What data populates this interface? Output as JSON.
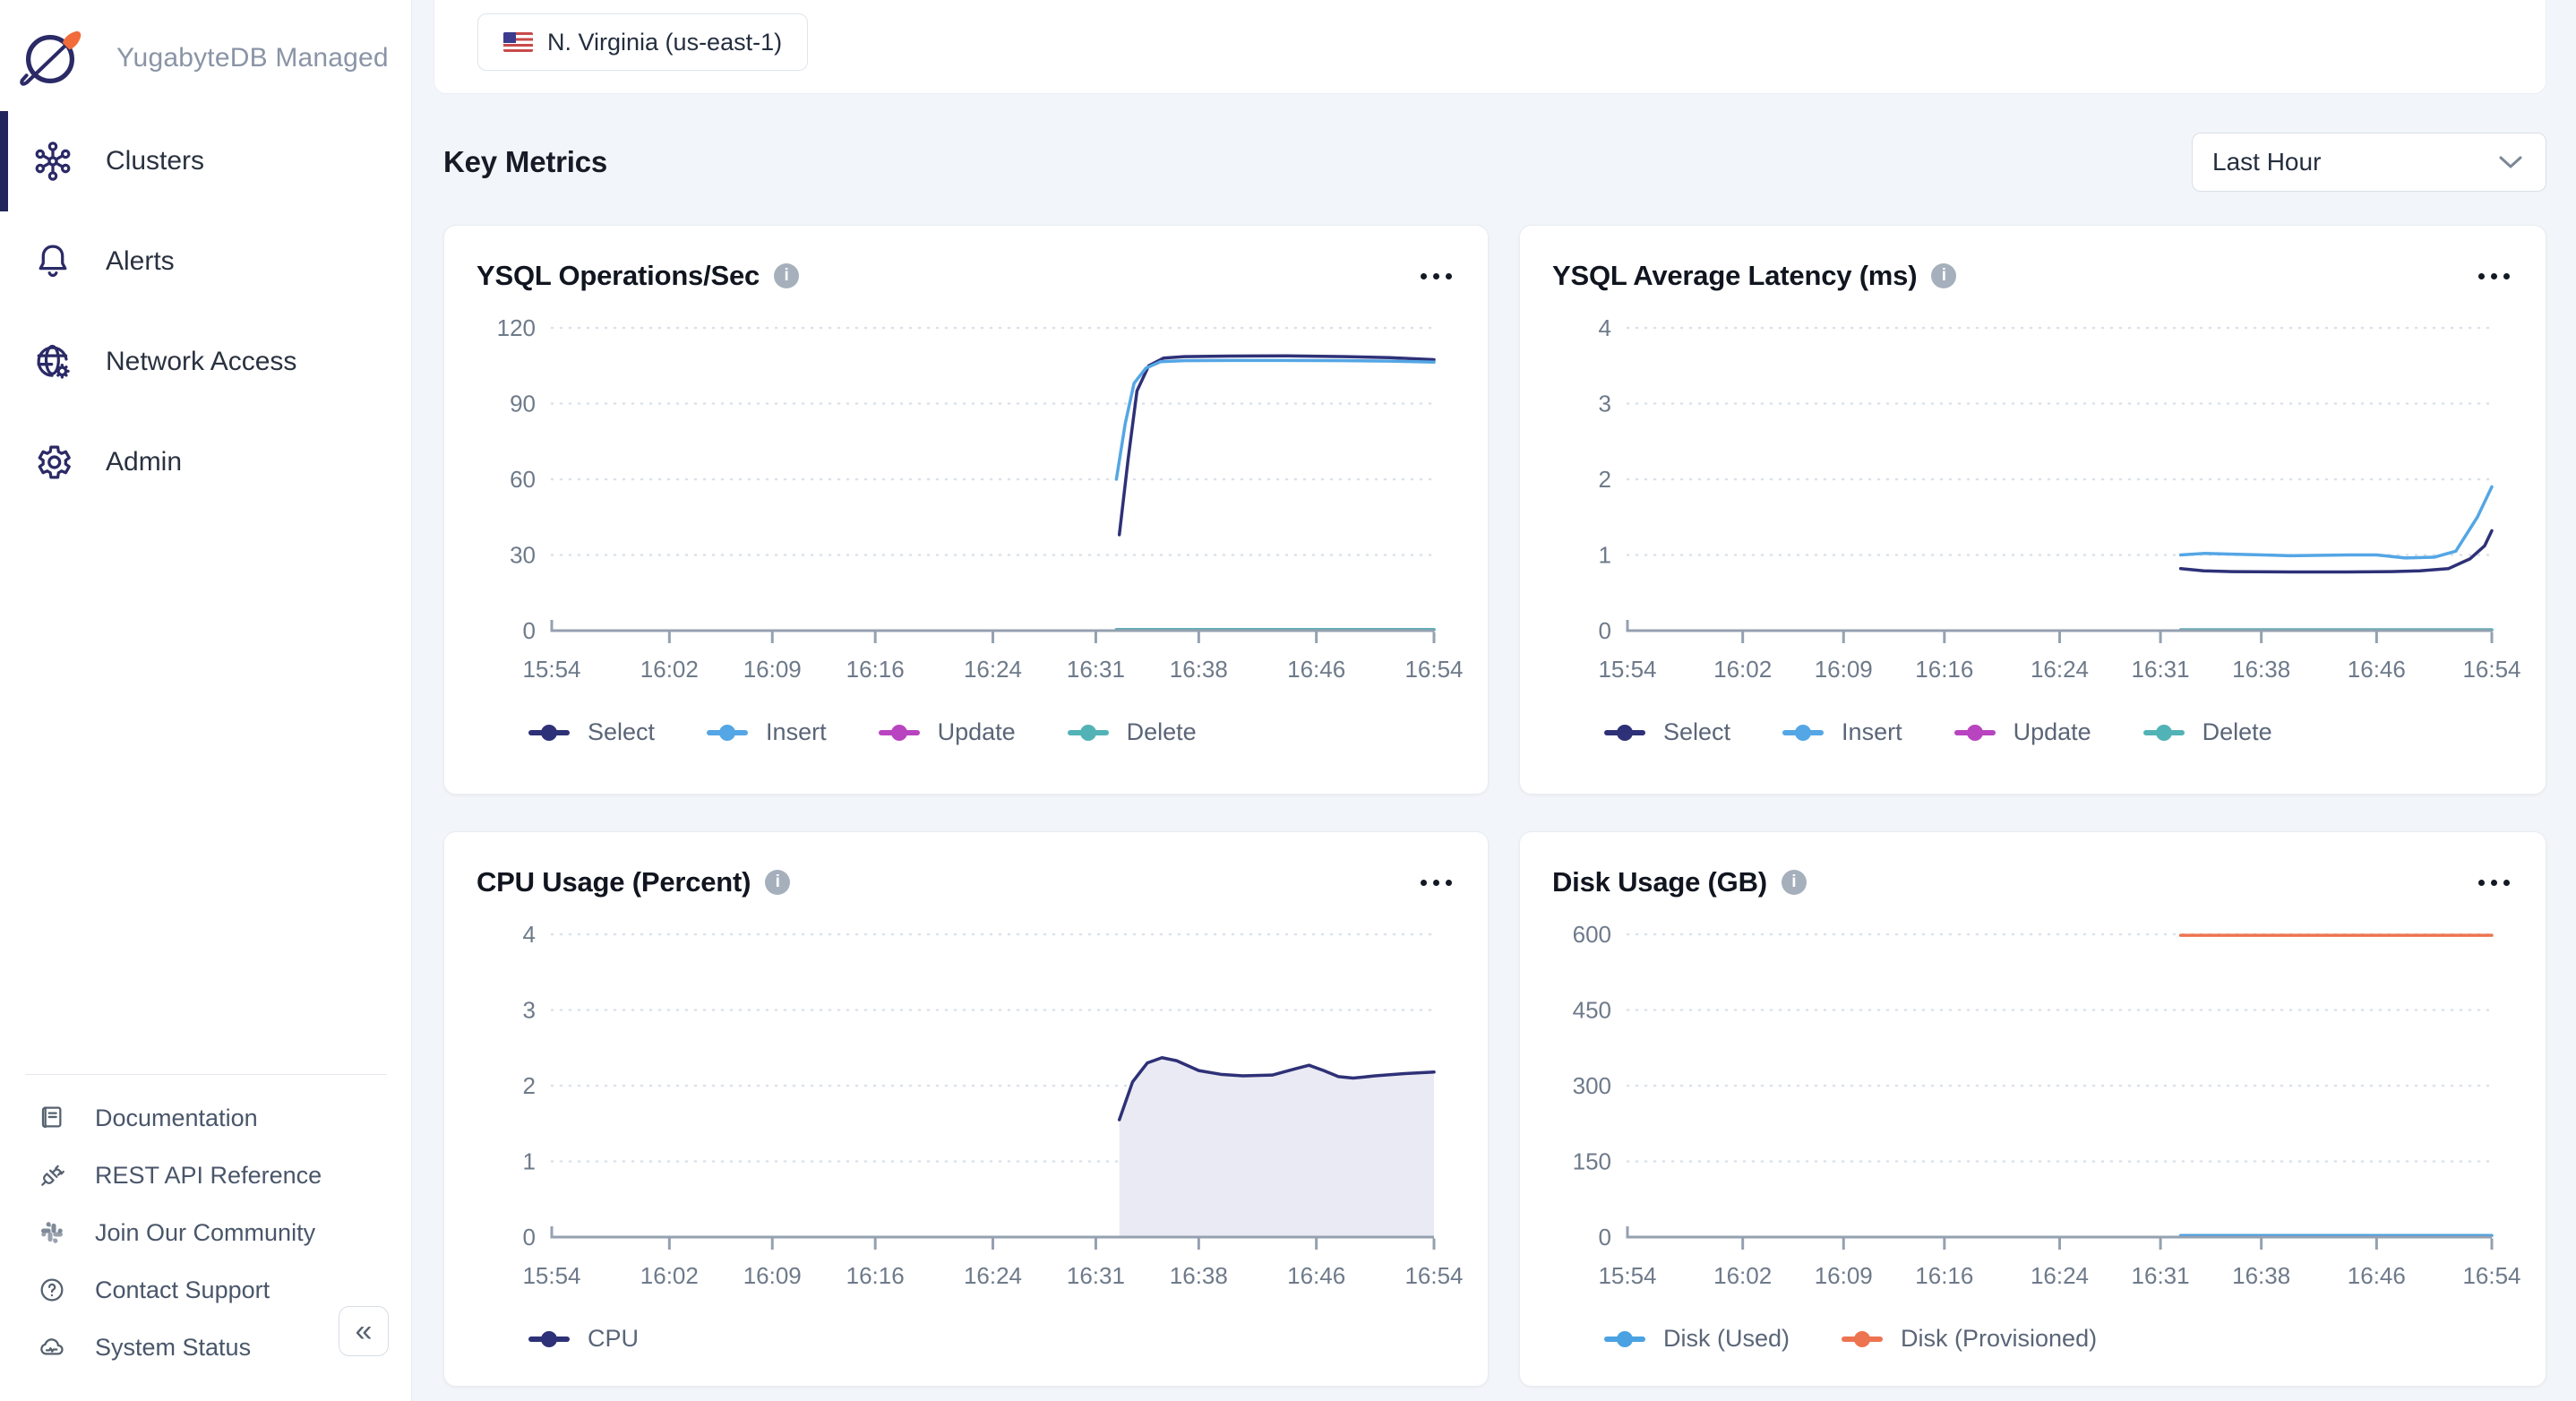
{
  "sidebar": {
    "brand": "YugabyteDB Managed",
    "nav": [
      {
        "label": "Clusters",
        "icon": "clusters-icon",
        "active": true
      },
      {
        "label": "Alerts",
        "icon": "bell-icon",
        "active": false
      },
      {
        "label": "Network Access",
        "icon": "globe-gear-icon",
        "active": false
      },
      {
        "label": "Admin",
        "icon": "gear-icon",
        "active": false
      }
    ],
    "footer": [
      {
        "label": "Documentation",
        "icon": "book-icon"
      },
      {
        "label": "REST API Reference",
        "icon": "plug-icon"
      },
      {
        "label": "Join Our Community",
        "icon": "slack-icon"
      },
      {
        "label": "Contact Support",
        "icon": "question-circle-icon"
      },
      {
        "label": "System Status",
        "icon": "cloud-status-icon"
      }
    ],
    "collapse_label": "«"
  },
  "topbar": {
    "region_chip": "N. Virginia (us-east-1)",
    "flag": "us-flag-icon"
  },
  "main": {
    "heading": "Key Metrics",
    "time_range": "Last Hour"
  },
  "colors": {
    "select_navy": "#2e3177",
    "insert_blue": "#54a6e5",
    "update_magenta": "#b944c0",
    "delete_teal": "#52b3b6",
    "disk_used_blue": "#4aa2e2",
    "disk_provisioned_orange": "#ed7450",
    "cpu_area_fill": "#eaeaf4"
  },
  "charts": [
    {
      "chart_data": {
        "type": "line",
        "title": "YSQL Operations/Sec",
        "ylim": [
          0,
          120
        ],
        "yticks": [
          0,
          30,
          60,
          90,
          120
        ],
        "x_domain": [
          954,
          1014
        ],
        "x_ticks": [
          {
            "t": 954,
            "label": "15:54"
          },
          {
            "t": 962,
            "label": "16:02"
          },
          {
            "t": 969,
            "label": "16:09"
          },
          {
            "t": 976,
            "label": "16:16"
          },
          {
            "t": 984,
            "label": "16:24"
          },
          {
            "t": 991,
            "label": "16:31"
          },
          {
            "t": 998,
            "label": "16:38"
          },
          {
            "t": 1006,
            "label": "16:46"
          },
          {
            "t": 1014,
            "label": "16:54"
          }
        ],
        "series": [
          {
            "name": "Select",
            "color": "#2e3177",
            "points": [
              [
                992.6,
                38
              ],
              [
                993.2,
                68
              ],
              [
                993.8,
                95
              ],
              [
                994.6,
                105
              ],
              [
                995.6,
                108
              ],
              [
                997,
                108.6
              ],
              [
                1000,
                108.8
              ],
              [
                1004,
                108.9
              ],
              [
                1008,
                108.6
              ],
              [
                1011,
                108.2
              ],
              [
                1014,
                107.4
              ]
            ]
          },
          {
            "name": "Insert",
            "color": "#54a6e5",
            "points": [
              [
                992.4,
                60
              ],
              [
                993,
                82
              ],
              [
                993.6,
                98
              ],
              [
                994.4,
                104
              ],
              [
                995.4,
                106.6
              ],
              [
                997,
                107
              ],
              [
                1000,
                107.1
              ],
              [
                1004,
                107.1
              ],
              [
                1008,
                107
              ],
              [
                1011,
                106.8
              ],
              [
                1014,
                106.4
              ]
            ]
          },
          {
            "name": "Update",
            "color": "#b944c0",
            "points": [
              [
                992.4,
                0.4
              ],
              [
                1014,
                0.4
              ]
            ]
          },
          {
            "name": "Delete",
            "color": "#52b3b6",
            "points": [
              [
                992.4,
                0.4
              ],
              [
                1014,
                0.4
              ]
            ]
          }
        ]
      }
    },
    {
      "chart_data": {
        "type": "line",
        "title": "YSQL Average Latency (ms)",
        "ylim": [
          0,
          4
        ],
        "yticks": [
          0,
          1,
          2,
          3,
          4
        ],
        "x_domain": [
          954,
          1014
        ],
        "x_ticks": [
          {
            "t": 954,
            "label": "15:54"
          },
          {
            "t": 962,
            "label": "16:02"
          },
          {
            "t": 969,
            "label": "16:09"
          },
          {
            "t": 976,
            "label": "16:16"
          },
          {
            "t": 984,
            "label": "16:24"
          },
          {
            "t": 991,
            "label": "16:31"
          },
          {
            "t": 998,
            "label": "16:38"
          },
          {
            "t": 1006,
            "label": "16:46"
          },
          {
            "t": 1014,
            "label": "16:54"
          }
        ],
        "series": [
          {
            "name": "Select",
            "color": "#2e3177",
            "points": [
              [
                992.4,
                0.82
              ],
              [
                994,
                0.79
              ],
              [
                996,
                0.78
              ],
              [
                1000,
                0.775
              ],
              [
                1004,
                0.775
              ],
              [
                1007,
                0.78
              ],
              [
                1009,
                0.79
              ],
              [
                1011,
                0.82
              ],
              [
                1012.5,
                0.95
              ],
              [
                1013.5,
                1.12
              ],
              [
                1014,
                1.32
              ]
            ]
          },
          {
            "name": "Insert",
            "color": "#54a6e5",
            "points": [
              [
                992.4,
                1.0
              ],
              [
                994,
                1.02
              ],
              [
                996,
                1.01
              ],
              [
                1000,
                0.99
              ],
              [
                1004,
                1.0
              ],
              [
                1006,
                1.0
              ],
              [
                1008,
                0.96
              ],
              [
                1010,
                0.97
              ],
              [
                1011.5,
                1.05
              ],
              [
                1013,
                1.5
              ],
              [
                1014,
                1.9
              ]
            ]
          },
          {
            "name": "Update",
            "color": "#b944c0",
            "points": [
              [
                992.4,
                0.01
              ],
              [
                1014,
                0.01
              ]
            ]
          },
          {
            "name": "Delete",
            "color": "#52b3b6",
            "points": [
              [
                992.4,
                0.01
              ],
              [
                1014,
                0.01
              ]
            ]
          }
        ]
      }
    },
    {
      "chart_data": {
        "type": "area",
        "title": "CPU Usage (Percent)",
        "ylim": [
          0,
          4
        ],
        "yticks": [
          0,
          1,
          2,
          3,
          4
        ],
        "x_domain": [
          954,
          1014
        ],
        "x_ticks": [
          {
            "t": 954,
            "label": "15:54"
          },
          {
            "t": 962,
            "label": "16:02"
          },
          {
            "t": 969,
            "label": "16:09"
          },
          {
            "t": 976,
            "label": "16:16"
          },
          {
            "t": 984,
            "label": "16:24"
          },
          {
            "t": 991,
            "label": "16:31"
          },
          {
            "t": 998,
            "label": "16:38"
          },
          {
            "t": 1006,
            "label": "16:46"
          },
          {
            "t": 1014,
            "label": "16:54"
          }
        ],
        "series": [
          {
            "name": "CPU",
            "color": "#2e3177",
            "area": true,
            "fill": "#eaeaf4",
            "points": [
              [
                992.6,
                1.55
              ],
              [
                993.5,
                2.05
              ],
              [
                994.5,
                2.3
              ],
              [
                995.5,
                2.37
              ],
              [
                996.5,
                2.33
              ],
              [
                998,
                2.2
              ],
              [
                999.5,
                2.15
              ],
              [
                1001,
                2.13
              ],
              [
                1003,
                2.14
              ],
              [
                1004.5,
                2.22
              ],
              [
                1005.5,
                2.27
              ],
              [
                1006.5,
                2.2
              ],
              [
                1007.5,
                2.12
              ],
              [
                1008.5,
                2.1
              ],
              [
                1010,
                2.13
              ],
              [
                1012,
                2.16
              ],
              [
                1014,
                2.18
              ]
            ]
          }
        ]
      }
    },
    {
      "chart_data": {
        "type": "line",
        "title": "Disk Usage (GB)",
        "ylim": [
          0,
          600
        ],
        "yticks": [
          0,
          150,
          300,
          450,
          600
        ],
        "x_domain": [
          954,
          1014
        ],
        "x_ticks": [
          {
            "t": 954,
            "label": "15:54"
          },
          {
            "t": 962,
            "label": "16:02"
          },
          {
            "t": 969,
            "label": "16:09"
          },
          {
            "t": 976,
            "label": "16:16"
          },
          {
            "t": 984,
            "label": "16:24"
          },
          {
            "t": 991,
            "label": "16:31"
          },
          {
            "t": 998,
            "label": "16:38"
          },
          {
            "t": 1006,
            "label": "16:46"
          },
          {
            "t": 1014,
            "label": "16:54"
          }
        ],
        "series": [
          {
            "name": "Disk (Used)",
            "color": "#4aa2e2",
            "points": [
              [
                992.4,
                3
              ],
              [
                1014,
                3
              ]
            ]
          },
          {
            "name": "Disk (Provisioned)",
            "color": "#ed7450",
            "points": [
              [
                992.4,
                598
              ],
              [
                1014,
                598
              ]
            ]
          }
        ]
      }
    }
  ]
}
